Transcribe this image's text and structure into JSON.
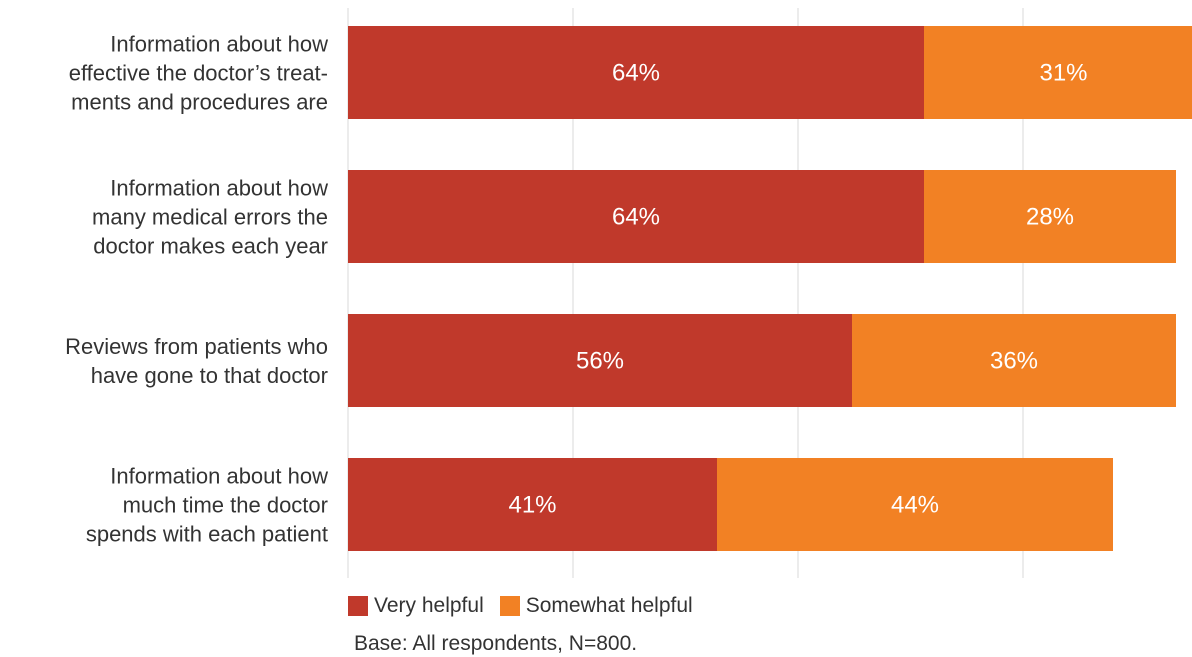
{
  "chart_data": {
    "type": "bar",
    "orientation": "horizontal",
    "stacked": true,
    "categories": [
      [
        "Information about how",
        "effective the doctor’s treat-",
        "ments and procedures are"
      ],
      [
        "Information about how",
        "many medical errors the",
        "doctor makes each year"
      ],
      [
        "Reviews from patients who",
        "have gone to that doctor"
      ],
      [
        "Information about how",
        "much time the doctor",
        "spends with each patient"
      ]
    ],
    "series": [
      {
        "name": "Very helpful",
        "color": "#c0392b",
        "values": [
          64,
          64,
          56,
          41
        ],
        "labels": [
          "64%",
          "64%",
          "56%",
          "41%"
        ]
      },
      {
        "name": "Somewhat helpful",
        "color": "#f28124",
        "values": [
          31,
          28,
          36,
          44
        ],
        "labels": [
          "31%",
          "28%",
          "36%",
          "44%"
        ]
      }
    ],
    "xlim": [
      0,
      100
    ],
    "grid": true,
    "legend_position": "bottom-left"
  },
  "legend": [
    {
      "label": "Very helpful",
      "color": "#c0392b"
    },
    {
      "label": "Somewhat helpful",
      "color": "#f28124"
    }
  ],
  "note": "Base: All respondents, N=800."
}
